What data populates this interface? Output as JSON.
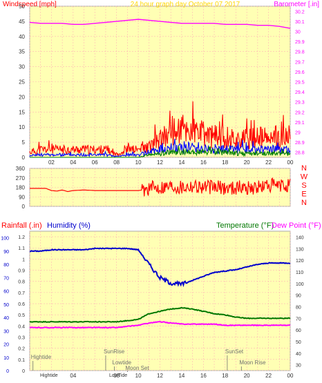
{
  "header": {
    "left_title": "Windspeed [mph]",
    "center_title": "24 hour graph day   October 07 2017",
    "right_title": "Barometer [.in]"
  },
  "colors": {
    "plot_bg": "#ffffb4",
    "grid": "#ffb4b4",
    "frame": "#aaaaaa",
    "windspeed": "#ff0000",
    "windgust_mid": "#0000ff",
    "windgust_low": "#008000",
    "barometer": "#ff00ff",
    "direction": "#ff0000",
    "humidity": "#0000cc",
    "temperature": "#007700",
    "dewpoint": "#ff00ff",
    "rainfall": "#ff0000",
    "annotations": "#707070"
  },
  "x_ticks": [
    "02",
    "04",
    "06",
    "08",
    "10",
    "12",
    "14",
    "16",
    "18",
    "20",
    "22",
    "00"
  ],
  "chart_data": [
    {
      "type": "line",
      "title": "24 hour graph day   October 07 2017",
      "ylabel": "Windspeed [mph]",
      "y2label": "Barometer [.in]",
      "ylim": [
        0,
        50
      ],
      "y_ticks": [
        0,
        5,
        10,
        15,
        20,
        25,
        30,
        35,
        40,
        45,
        50
      ],
      "y2lim": [
        28.75,
        30.25
      ],
      "y2_ticks": [
        "28.8",
        "28.9",
        "29",
        "29.1",
        "29.2",
        "29.3",
        "29.4",
        "29.5",
        "29.6",
        "29.7",
        "29.8",
        "29.9",
        "30",
        "30.1",
        "30.2"
      ],
      "x_hours": [
        0,
        1,
        2,
        3,
        4,
        5,
        6,
        7,
        8,
        9,
        10,
        11,
        12,
        13,
        14,
        15,
        16,
        17,
        18,
        19,
        20,
        21,
        22,
        23,
        24
      ],
      "series": [
        {
          "key": "windspeed_gust",
          "values": [
            2,
            3,
            3,
            3,
            3,
            3,
            3,
            3,
            1,
            3,
            3,
            4,
            7,
            9,
            11,
            10,
            9,
            8,
            8,
            7,
            7,
            8,
            7,
            7,
            8
          ]
        },
        {
          "key": "windspeed_avg",
          "values": [
            0.5,
            1,
            1,
            1,
            1,
            1,
            1,
            1,
            0.3,
            1,
            1,
            2,
            3,
            3.5,
            4,
            4,
            3.5,
            3,
            3,
            3,
            3,
            3,
            3,
            3,
            3
          ]
        },
        {
          "key": "windspeed_min",
          "values": [
            0,
            0,
            0,
            0,
            0,
            0,
            0,
            0,
            0,
            0,
            0,
            1,
            1.5,
            2,
            2,
            2,
            2,
            2,
            2,
            1.5,
            1.5,
            1.5,
            1.5,
            1.5,
            1.5
          ]
        },
        {
          "key": "barometer",
          "values": [
            30.09,
            30.08,
            30.08,
            30.08,
            30.07,
            30.07,
            30.08,
            30.09,
            30.1,
            30.11,
            30.12,
            30.11,
            30.1,
            30.09,
            30.08,
            30.08,
            30.08,
            30.08,
            30.07,
            30.07,
            30.07,
            30.06,
            30.06,
            30.05,
            30.03
          ]
        }
      ]
    },
    {
      "type": "line",
      "ylim": [
        0,
        360
      ],
      "y_ticks": [
        0,
        90,
        180,
        270,
        360
      ],
      "right_labels": [
        "N",
        "W",
        "S",
        "E",
        "N"
      ],
      "series": [
        {
          "key": "wind_direction",
          "x_hours": [
            0,
            1.5,
            2,
            2.5,
            3,
            3.5,
            4,
            5,
            6,
            7,
            8,
            9,
            10,
            10.5,
            11,
            12,
            13,
            14,
            15,
            16,
            17,
            18,
            19,
            20,
            21,
            22,
            23,
            24
          ],
          "values": [
            170,
            170,
            150,
            145,
            155,
            140,
            150,
            155,
            150,
            150,
            150,
            150,
            150,
            155,
            170,
            185,
            195,
            185,
            200,
            185,
            180,
            175,
            180,
            180,
            175,
            200,
            190,
            200
          ]
        }
      ]
    },
    {
      "type": "line",
      "ylabel": "Rainfall (.in)",
      "y1b_label": "Humidity (%)",
      "y2label": "Temperature (°F)",
      "y3label": "Dew Point (°F)",
      "humidity_ticks": [
        0,
        10,
        20,
        30,
        40,
        50,
        60,
        70,
        80,
        90,
        100
      ],
      "rain_ticks": [
        "0",
        "0.1",
        "0.2",
        "0.3",
        "0.4",
        "0.5",
        "0.6",
        "0.7",
        "0.8",
        "0.9",
        "1",
        "1.1",
        "1.2"
      ],
      "temp_ticks": [
        30,
        40,
        50,
        60,
        70,
        80,
        90,
        100,
        110,
        120,
        130,
        140
      ],
      "humidity_lim": [
        0,
        105
      ],
      "temp_lim": [
        25,
        145
      ],
      "x_hours": [
        0,
        1,
        2,
        3,
        4,
        5,
        6,
        7,
        8,
        9,
        10,
        11,
        12,
        13,
        14,
        15,
        16,
        17,
        18,
        19,
        20,
        21,
        22,
        23,
        24
      ],
      "series": [
        {
          "key": "humidity",
          "values": [
            90,
            90,
            91,
            91,
            91,
            91,
            92,
            92,
            92,
            92,
            91,
            80,
            70,
            66,
            65,
            68,
            71,
            74,
            75,
            76,
            78,
            80,
            81,
            81,
            81
          ]
        },
        {
          "key": "temperature",
          "values": [
            67,
            67,
            67,
            67,
            67,
            67,
            67,
            67,
            67,
            68,
            69,
            74,
            76,
            78,
            79,
            78,
            76,
            74,
            73,
            71,
            70,
            70,
            70,
            70,
            70
          ]
        },
        {
          "key": "dewpoint",
          "values": [
            62,
            62,
            62,
            62,
            62,
            62,
            62,
            62,
            62,
            63,
            64,
            66,
            67,
            66,
            65,
            65,
            65,
            65,
            64,
            64,
            64,
            64,
            64,
            64,
            64
          ]
        }
      ]
    }
  ],
  "events": [
    {
      "label": "Hightide",
      "hour": 0.3,
      "row": 1
    },
    {
      "label": "SunRise",
      "hour": 7.0,
      "row": 0
    },
    {
      "label": "Lowtide",
      "hour": 7.8,
      "row": 2
    },
    {
      "label": "Moon Set",
      "hour": 9.0,
      "row": 3
    },
    {
      "label": "SunSet",
      "hour": 18.2,
      "row": 0
    },
    {
      "label": "Moon Rise",
      "hour": 19.5,
      "row": 2
    }
  ],
  "bottom_axis": {
    "left_text": "Hightide",
    "middle_text": "LowTide"
  }
}
